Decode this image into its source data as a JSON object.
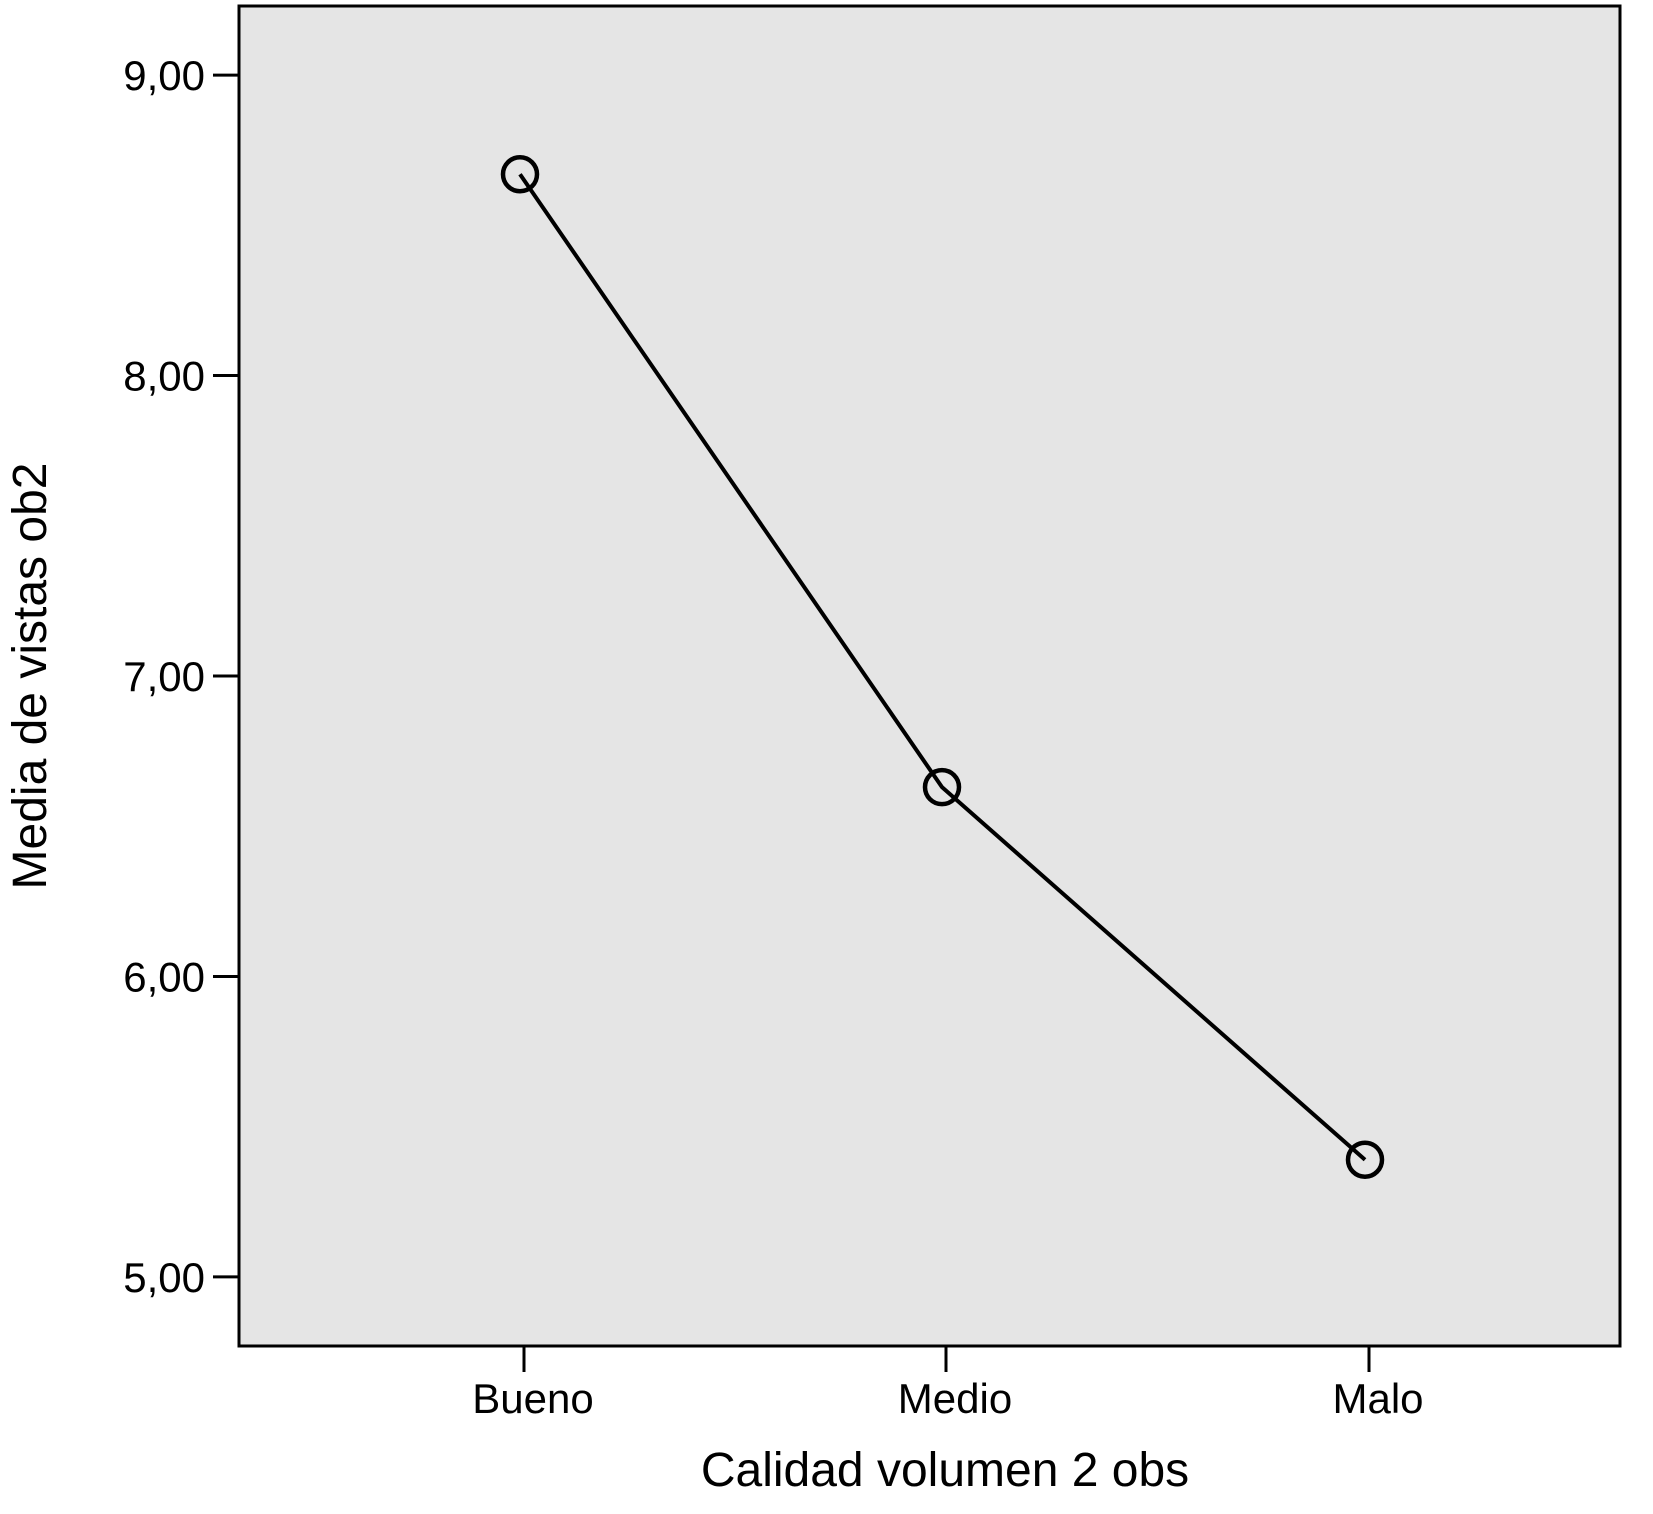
{
  "chart_data": {
    "type": "line",
    "title": "",
    "xlabel": "Calidad volumen 2 obs",
    "ylabel": "Media de vistas ob2",
    "categories": [
      "Bueno",
      "Medio",
      "Malo"
    ],
    "series": [
      {
        "values": [
          8.67,
          6.63,
          5.39
        ],
        "marker": "open-circle"
      }
    ],
    "y_ticks": [
      5,
      6,
      7,
      8,
      9
    ],
    "y_tick_labels": [
      "5,00",
      "6,00",
      "7,00",
      "8,00",
      "9,00"
    ],
    "ylim": [
      4.77,
      9.23
    ],
    "grid": false,
    "legend": "none",
    "colors": {
      "plot_background": "#e5e5e5",
      "line": "#000000",
      "axis": "#000000"
    }
  }
}
